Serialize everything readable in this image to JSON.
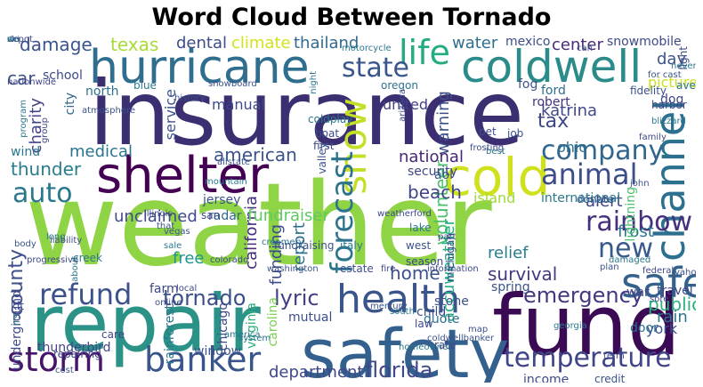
{
  "title": "Word Cloud Between Tornado",
  "words": [
    {
      "text": "insurance",
      "color": "#3b2f72"
    },
    {
      "text": "weather",
      "color": "#8fd444"
    },
    {
      "text": "repair",
      "color": "#2a9287"
    },
    {
      "text": "fund",
      "color": "#3a0a55"
    },
    {
      "text": "safety",
      "color": "#33608d"
    },
    {
      "text": "hurricane",
      "color": "#2f6e8e"
    },
    {
      "text": "coldwell",
      "color": "#2a8b8a"
    },
    {
      "text": "shelter",
      "color": "#440154"
    },
    {
      "text": "cold",
      "color": "#cfe11c"
    },
    {
      "text": "channel",
      "color": "#2b708e"
    },
    {
      "text": "health",
      "color": "#3a548c"
    },
    {
      "text": "safe",
      "color": "#34628d"
    },
    {
      "text": "banker",
      "color": "#39558c"
    },
    {
      "text": "storm",
      "color": "#481467"
    },
    {
      "text": "refund",
      "color": "#3b518b"
    },
    {
      "text": "life",
      "color": "#25ab82"
    },
    {
      "text": "snow",
      "color": "#c4df25"
    },
    {
      "text": "animal",
      "color": "#3d4d8a"
    },
    {
      "text": "company",
      "color": "#31668e"
    },
    {
      "text": "state",
      "color": "#39578c"
    },
    {
      "text": "auto",
      "color": "#2a788e"
    },
    {
      "text": "forecast",
      "color": "#2c738e"
    },
    {
      "text": "temperature",
      "color": "#404588"
    },
    {
      "text": "rainbow",
      "color": "#46307e"
    },
    {
      "text": "new",
      "color": "#38598c"
    },
    {
      "text": "florida",
      "color": "#3f4889"
    },
    {
      "text": "emergency",
      "color": "#453781"
    },
    {
      "text": "tornado",
      "color": "#3c4f8a"
    },
    {
      "text": "lyric",
      "color": "#424086"
    },
    {
      "text": "county",
      "color": "#3d4e8a"
    },
    {
      "text": "damage",
      "color": "#3a548c"
    },
    {
      "text": "texas",
      "color": "#a8db34"
    },
    {
      "text": "tax",
      "color": "#3f4788"
    },
    {
      "text": "medical",
      "color": "#2c738e"
    },
    {
      "text": "thunder",
      "color": "#287c8e"
    },
    {
      "text": "american",
      "color": "#3b528b"
    },
    {
      "text": "volunteer",
      "color": "#4ac16d"
    },
    {
      "text": "accuweather",
      "color": "#26ad81"
    },
    {
      "text": "report",
      "color": "#2e6f8e"
    },
    {
      "text": "california",
      "color": "#46307e"
    },
    {
      "text": "funding",
      "color": "#3e4989"
    },
    {
      "text": "free",
      "color": "#1f978b"
    },
    {
      "text": "beach",
      "color": "#414487"
    },
    {
      "text": "home",
      "color": "#3b528b"
    },
    {
      "text": "relief",
      "color": "#287d8e"
    },
    {
      "text": "survival",
      "color": "#453882"
    },
    {
      "text": "alert",
      "color": "#404588"
    },
    {
      "text": "public",
      "color": "#2db27d"
    },
    {
      "text": "rain",
      "color": "#2a768e"
    },
    {
      "text": "car",
      "color": "#3b528b"
    },
    {
      "text": "dental",
      "color": "#3e4c8a"
    },
    {
      "text": "climate",
      "color": "#d2e21b"
    },
    {
      "text": "thailand",
      "color": "#31688e"
    },
    {
      "text": "water",
      "color": "#2e6e8e"
    },
    {
      "text": "center",
      "color": "#472c7a"
    },
    {
      "text": "mexico",
      "color": "#3c4f8a"
    },
    {
      "text": "snowmobile",
      "color": "#3e4a89"
    },
    {
      "text": "day",
      "color": "#3b528b"
    },
    {
      "text": "picture",
      "color": "#cde11d"
    },
    {
      "text": "dog",
      "color": "#404688"
    },
    {
      "text": "katrina",
      "color": "#3f4889"
    },
    {
      "text": "robert",
      "color": "#45337f"
    },
    {
      "text": "ford",
      "color": "#2e6e8e"
    },
    {
      "text": "fog",
      "color": "#3b528b"
    },
    {
      "text": "united",
      "color": "#424186"
    },
    {
      "text": "warning",
      "color": "#3b518b"
    },
    {
      "text": "national",
      "color": "#482576"
    },
    {
      "text": "aol",
      "color": "#38588c"
    },
    {
      "text": "island",
      "color": "#a0da39"
    },
    {
      "text": "unclaimed",
      "color": "#3e4a89"
    },
    {
      "text": "fundraiser",
      "color": "#5ec962"
    },
    {
      "text": "security",
      "color": "#3f4788"
    },
    {
      "text": "ohio",
      "color": "#2c728e"
    },
    {
      "text": "york",
      "color": "#3a538b"
    },
    {
      "text": "spring",
      "color": "#3b528b"
    },
    {
      "text": "quote",
      "color": "#2e6e8e"
    },
    {
      "text": "child",
      "color": "#3b528b"
    },
    {
      "text": "stone",
      "color": "#3c508b"
    },
    {
      "text": "mutual",
      "color": "#3d4d8a"
    },
    {
      "text": "department",
      "color": "#3f4788"
    },
    {
      "text": "frost",
      "color": "#2c738e"
    },
    {
      "text": "farm",
      "color": "#3e4989"
    },
    {
      "text": "service",
      "color": "#3b528b"
    },
    {
      "text": "city",
      "color": "#31688e"
    },
    {
      "text": "charity",
      "color": "#414487"
    },
    {
      "text": "north",
      "color": "#2d708e"
    },
    {
      "text": "school",
      "color": "#3e4a89"
    },
    {
      "text": "jersey",
      "color": "#3b528b"
    },
    {
      "text": "manual",
      "color": "#3f4889"
    },
    {
      "text": "wind",
      "color": "#2a788e"
    },
    {
      "text": "radar",
      "color": "#31688e"
    },
    {
      "text": "san",
      "color": "#3e4989"
    },
    {
      "text": "lake",
      "color": "#2c738e"
    },
    {
      "text": "west",
      "color": "#3b528b"
    },
    {
      "text": "season",
      "color": "#3e4989"
    },
    {
      "text": "lightning",
      "color": "#4ac16d"
    },
    {
      "text": "door",
      "color": "#2c738e"
    },
    {
      "text": "underground",
      "color": "#3e4a89"
    },
    {
      "text": "thunderbird",
      "color": "#414487"
    },
    {
      "text": "rainforest",
      "color": "#2a778e"
    },
    {
      "text": "chicago",
      "color": "#3e4989"
    },
    {
      "text": "virginia",
      "color": "#2db27d"
    },
    {
      "text": "carolina",
      "color": "#7ad151"
    },
    {
      "text": "window",
      "color": "#3b528b"
    },
    {
      "text": "income",
      "color": "#3e4a89"
    },
    {
      "text": "care",
      "color": "#3f4788"
    },
    {
      "text": "fundraising",
      "color": "#3b528b"
    },
    {
      "text": "michigan",
      "color": "#3e4989"
    },
    {
      "text": "donate",
      "color": "#3b528b"
    },
    {
      "text": "war",
      "color": "#3e4989"
    },
    {
      "text": "travel",
      "color": "#3f4788"
    },
    {
      "text": "tennessee",
      "color": "#2a768e"
    },
    {
      "text": "credit",
      "color": "#3b528b"
    },
    {
      "text": "kit",
      "color": "#3e4a89"
    },
    {
      "text": "irs",
      "color": "#2c738e"
    },
    {
      "text": "international",
      "color": "#2a788e"
    },
    {
      "text": "pet",
      "color": "#3e4989"
    },
    {
      "text": "job",
      "color": "#3b528b"
    },
    {
      "text": "coldplay",
      "color": "#2a788e"
    },
    {
      "text": "boat",
      "color": "#3e4a89"
    },
    {
      "text": "harbor",
      "color": "#3e4989"
    },
    {
      "text": "oregon",
      "color": "#2c738e"
    },
    {
      "text": "blue",
      "color": "#2a788e"
    },
    {
      "text": "fidelity",
      "color": "#3b528b"
    },
    {
      "text": "average",
      "color": "#2a788e"
    },
    {
      "text": "light",
      "color": "#3e4989"
    },
    {
      "text": "nationwide",
      "color": "#414487"
    },
    {
      "text": "motorcycle",
      "color": "#2a788e"
    },
    {
      "text": "history",
      "color": "#3b528b"
    },
    {
      "text": "first",
      "color": "#3e4989"
    },
    {
      "text": "valley",
      "color": "#3b528b"
    },
    {
      "text": "frosting",
      "color": "#3e4989"
    },
    {
      "text": "creamery",
      "color": "#2c738e"
    },
    {
      "text": "weatherford",
      "color": "#3e4a89"
    },
    {
      "text": "estate",
      "color": "#3b528b"
    },
    {
      "text": "italy",
      "color": "#2a788e"
    },
    {
      "text": "part",
      "color": "#3e4989"
    },
    {
      "text": "plan",
      "color": "#3b528b"
    },
    {
      "text": "damaged",
      "color": "#2a788e"
    },
    {
      "text": "fire",
      "color": "#3e4989"
    },
    {
      "text": "mercury",
      "color": "#3b528b"
    },
    {
      "text": "south",
      "color": "#2a788e"
    },
    {
      "text": "law",
      "color": "#3e4989"
    },
    {
      "text": "map",
      "color": "#3b528b"
    },
    {
      "text": "homeowner",
      "color": "#2a788e"
    },
    {
      "text": "rate",
      "color": "#3e4989"
    },
    {
      "text": "coldwellbanker",
      "color": "#3b528b"
    },
    {
      "text": "system",
      "color": "#2a788e"
    },
    {
      "text": "repairing",
      "color": "#3e4989"
    },
    {
      "text": "cost",
      "color": "#3b528b"
    },
    {
      "text": "creek",
      "color": "#2a788e"
    },
    {
      "text": "progressive",
      "color": "#3e4989"
    },
    {
      "text": "body",
      "color": "#3b528b"
    },
    {
      "text": "long",
      "color": "#2a788e"
    },
    {
      "text": "illinois",
      "color": "#3e4989"
    },
    {
      "text": "that",
      "color": "#3b528b"
    },
    {
      "text": "about",
      "color": "#2a788e"
    },
    {
      "text": "colorado",
      "color": "#3e4989"
    },
    {
      "text": "washington",
      "color": "#3b528b"
    },
    {
      "text": "america",
      "color": "#2a788e"
    },
    {
      "text": "information",
      "color": "#3e4989"
    },
    {
      "text": "john",
      "color": "#3b528b"
    },
    {
      "text": "georgia",
      "color": "#2a788e"
    },
    {
      "text": "federal",
      "color": "#3e4989"
    },
    {
      "text": "yahoo",
      "color": "#3b528b"
    },
    {
      "text": "your",
      "color": "#2a788e"
    },
    {
      "text": "term",
      "color": "#3e4989"
    },
    {
      "text": "snowboard",
      "color": "#3b528b"
    },
    {
      "text": "program",
      "color": "#2a788e"
    },
    {
      "text": "group",
      "color": "#3e4989"
    },
    {
      "text": "atmosphere",
      "color": "#3b528b"
    },
    {
      "text": "blizzard",
      "color": "#2a788e"
    },
    {
      "text": "family",
      "color": "#3e4989"
    },
    {
      "text": "allstate",
      "color": "#3b528b"
    },
    {
      "text": "mountain",
      "color": "#2a788e"
    },
    {
      "text": "liability",
      "color": "#3e4989"
    },
    {
      "text": "vegas",
      "color": "#3b528b"
    },
    {
      "text": "sale",
      "color": "#2a788e"
    },
    {
      "text": "local",
      "color": "#3e4989"
    },
    {
      "text": "online",
      "color": "#3b528b"
    },
    {
      "text": "best",
      "color": "#2a788e"
    },
    {
      "text": "sore",
      "color": "#3e4989"
    },
    {
      "text": "can",
      "color": "#3b528b"
    },
    {
      "text": "night",
      "color": "#2a788e"
    },
    {
      "text": "arizona",
      "color": "#3e4989"
    },
    {
      "text": "for cast",
      "color": "#3b528b"
    },
    {
      "text": "never",
      "color": "#2a788e"
    },
    {
      "text": "depot",
      "color": "#3e4989"
    },
    {
      "text": "ski",
      "color": "#3b528b"
    },
    {
      "text": "wo",
      "color": "#2a788e"
    }
  ]
}
